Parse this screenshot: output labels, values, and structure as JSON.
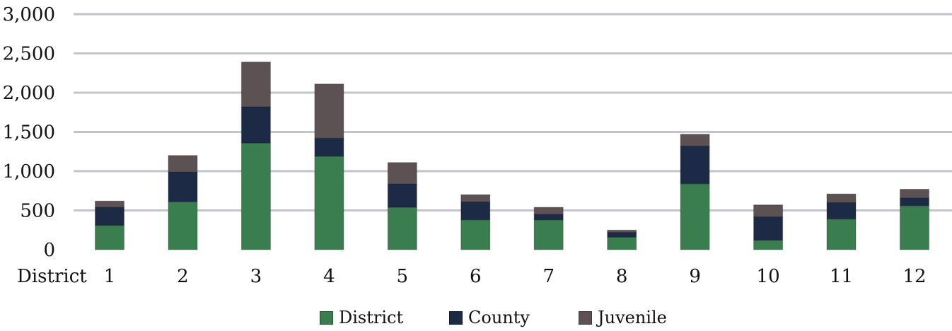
{
  "chart_data": {
    "type": "bar",
    "stacked": true,
    "categories": [
      "1",
      "2",
      "3",
      "4",
      "5",
      "6",
      "7",
      "8",
      "9",
      "10",
      "11",
      "12"
    ],
    "category_prefix": "District",
    "series": [
      {
        "name": "District",
        "color": "#3a7d4e",
        "values": [
          310,
          610,
          1360,
          1190,
          540,
          380,
          380,
          160,
          840,
          120,
          390,
          560
        ]
      },
      {
        "name": "County",
        "color": "#1c2a45",
        "values": [
          230,
          380,
          460,
          230,
          300,
          230,
          70,
          60,
          480,
          300,
          210,
          100
        ]
      },
      {
        "name": "Juvenile",
        "color": "#5c5254",
        "values": [
          80,
          210,
          570,
          690,
          270,
          90,
          90,
          30,
          150,
          150,
          110,
          110
        ]
      }
    ],
    "ylim": [
      0,
      3000
    ],
    "yticks": [
      "0",
      "500",
      "1,000",
      "1,500",
      "2,000",
      "2,500",
      "3,000"
    ],
    "ytick_values": [
      0,
      500,
      1000,
      1500,
      2000,
      2500,
      3000
    ],
    "grid": true,
    "legend_position": "bottom-center",
    "title": "",
    "xlabel": "",
    "ylabel": ""
  }
}
